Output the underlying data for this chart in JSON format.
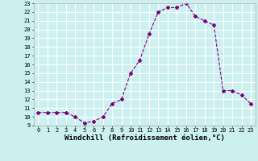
{
  "x": [
    0,
    1,
    2,
    3,
    4,
    5,
    6,
    7,
    8,
    9,
    10,
    11,
    12,
    13,
    14,
    15,
    16,
    17,
    18,
    19,
    20,
    21,
    22,
    23
  ],
  "y": [
    10.5,
    10.5,
    10.5,
    10.5,
    10.0,
    9.3,
    9.5,
    10.0,
    11.5,
    12.0,
    15.0,
    16.5,
    19.5,
    22.0,
    22.5,
    22.5,
    23.0,
    21.5,
    21.0,
    20.5,
    13.0,
    13.0,
    12.5,
    11.5
  ],
  "line_color": "#7B007B",
  "marker": "D",
  "marker_size": 2,
  "bg_color": "#ccf0f0",
  "grid_color": "#ffffff",
  "xlabel": "Windchill (Refroidissement éolien,°C)",
  "xlim": [
    -0.5,
    23.5
  ],
  "ylim": [
    9,
    23
  ],
  "yticks": [
    9,
    10,
    11,
    12,
    13,
    14,
    15,
    16,
    17,
    18,
    19,
    20,
    21,
    22,
    23
  ],
  "xticks": [
    0,
    1,
    2,
    3,
    4,
    5,
    6,
    7,
    8,
    9,
    10,
    11,
    12,
    13,
    14,
    15,
    16,
    17,
    18,
    19,
    20,
    21,
    22,
    23
  ],
  "tick_fontsize": 5,
  "xlabel_fontsize": 6.5,
  "border_color": "#aaaaaa"
}
